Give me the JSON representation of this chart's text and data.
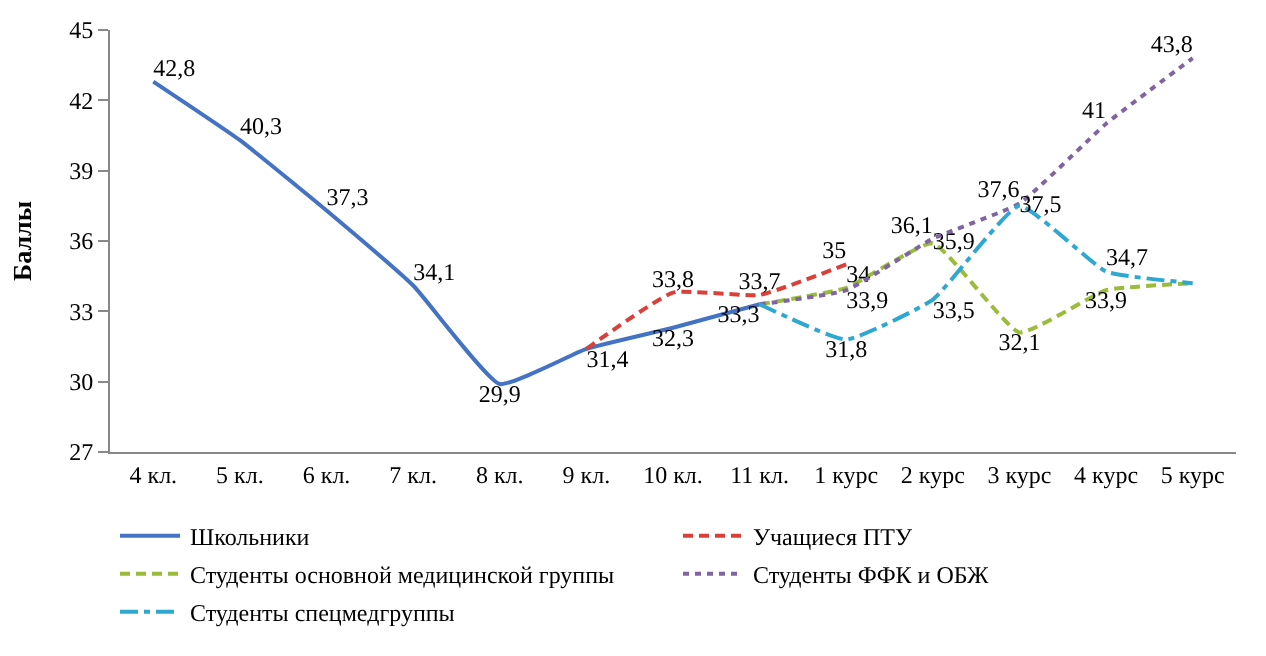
{
  "chart_data": {
    "type": "line",
    "ylabel": "Баллы",
    "categories": [
      "4 кл.",
      "5 кл.",
      "6 кл.",
      "7 кл.",
      "8 кл.",
      "9 кл.",
      "10 кл.",
      "11 кл.",
      "1 курс",
      "2 курс",
      "3 курс",
      "4 курс",
      "5 курс"
    ],
    "series": [
      {
        "name": "Школьники",
        "color": "#4472c4",
        "line_style": "solid",
        "values": [
          42.8,
          40.3,
          37.3,
          34.1,
          29.9,
          31.4,
          32.3,
          33.3,
          null,
          null,
          null,
          null,
          null
        ],
        "value_labels": [
          "42,8",
          "40,3",
          "37,3",
          "34,1",
          "29,9",
          "31,4",
          "32,3",
          "33,3",
          null,
          null,
          null,
          null,
          null
        ]
      },
      {
        "name": "Учащиеся ПТУ",
        "color": "#d9403a",
        "line_style": "dashed",
        "values": [
          null,
          null,
          null,
          null,
          null,
          31.4,
          33.8,
          33.7,
          35,
          null,
          null,
          null,
          null
        ],
        "value_labels": [
          null,
          null,
          null,
          null,
          null,
          null,
          "33,8",
          "33,7",
          "35",
          null,
          null,
          null,
          null
        ]
      },
      {
        "name": "Студенты основной медицинской группы",
        "color": "#9bbb3b",
        "line_style": "dashed",
        "values": [
          null,
          null,
          null,
          null,
          null,
          null,
          null,
          33.3,
          34,
          35.9,
          32.1,
          33.9,
          34.2
        ],
        "value_labels": [
          null,
          null,
          null,
          null,
          null,
          null,
          null,
          null,
          "34",
          "35,9",
          "32,1",
          "33,9",
          null
        ]
      },
      {
        "name": "Студенты ФФК и ОБЖ",
        "color": "#8064a2",
        "line_style": "dotted",
        "values": [
          null,
          null,
          null,
          null,
          null,
          null,
          null,
          33.3,
          33.9,
          36.1,
          37.6,
          41,
          43.8
        ],
        "value_labels": [
          null,
          null,
          null,
          null,
          null,
          null,
          null,
          null,
          "33,9",
          "36,1",
          "37,6",
          "41",
          "43,8"
        ]
      },
      {
        "name": "Студенты спецмедгруппы",
        "color": "#2ea8d0",
        "line_style": "dashdot",
        "values": [
          null,
          null,
          null,
          null,
          null,
          null,
          null,
          33.3,
          31.8,
          33.5,
          37.5,
          34.7,
          34.2
        ],
        "value_labels": [
          null,
          null,
          null,
          null,
          null,
          null,
          null,
          null,
          "31,8",
          "33,5",
          "37,5",
          "34,7",
          null
        ]
      }
    ],
    "ylim": [
      27,
      45
    ],
    "yticks": [
      27,
      30,
      33,
      36,
      39,
      42,
      45
    ],
    "legend": "bottom",
    "marker": "none"
  }
}
